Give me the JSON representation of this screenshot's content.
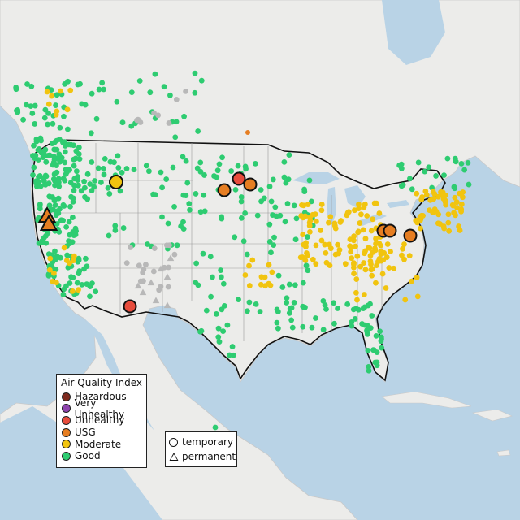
{
  "legend_aqi": {
    "title": "Air Quality Index",
    "items": [
      {
        "label": "Hazardous",
        "color": "#7e2a1e"
      },
      {
        "label": "Very Unhealthy",
        "color": "#8e44ad"
      },
      {
        "label": "Unhealthy",
        "color": "#e74c3c"
      },
      {
        "label": "USG",
        "color": "#e67e22"
      },
      {
        "label": "Moderate",
        "color": "#f1c40f"
      },
      {
        "label": "Good",
        "color": "#2ecc71"
      }
    ]
  },
  "legend_type": {
    "temporary": "temporary",
    "permanent": "permanent"
  },
  "colors": {
    "water": "#b9d3e6",
    "land": "#ececea",
    "no_data": "#b8b8b8"
  }
}
